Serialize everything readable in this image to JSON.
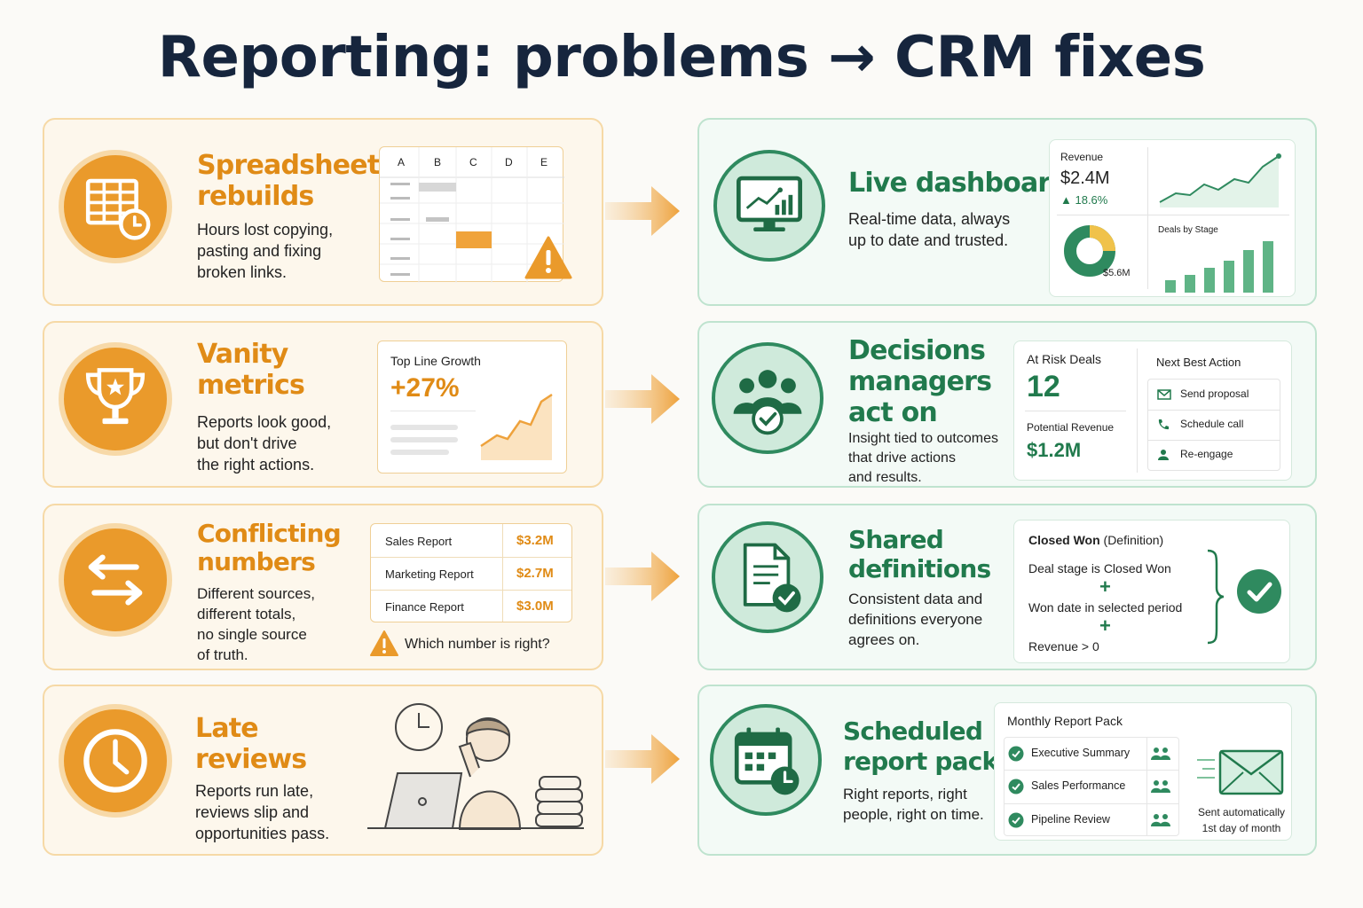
{
  "title": "Reporting: problems → CRM fixes",
  "colors": {
    "problem_accent": "#e08b16",
    "fix_accent": "#217a4d"
  },
  "problems": [
    {
      "icon": "spreadsheet-clock-icon",
      "heading_line1": "Spreadsheet",
      "heading_line2": "rebuilds",
      "body": [
        "Hours lost copying,",
        "pasting and fixing",
        "broken links."
      ],
      "spreadsheet_columns": [
        "A",
        "B",
        "C",
        "D",
        "E"
      ]
    },
    {
      "icon": "trophy-icon",
      "heading_line1": "Vanity",
      "heading_line2": "metrics",
      "body": [
        "Reports look good,",
        "but don't drive",
        "the right actions."
      ],
      "card_label": "Top Line Growth",
      "card_value": "+27%"
    },
    {
      "icon": "swap-arrows-icon",
      "heading_line1": "Conflicting",
      "heading_line2": "numbers",
      "body": [
        "Different sources,",
        "different totals,",
        "no single source",
        "of truth."
      ],
      "reports": [
        {
          "name": "Sales Report",
          "value": "$3.2M"
        },
        {
          "name": "Marketing Report",
          "value": "$2.7M"
        },
        {
          "name": "Finance Report",
          "value": "$3.0M"
        }
      ],
      "warning": "Which number is right?"
    },
    {
      "icon": "clock-icon",
      "heading_line1": "Late",
      "heading_line2": "reviews",
      "body": [
        "Reports run late,",
        "reviews slip and",
        "opportunities pass."
      ]
    }
  ],
  "fixes": [
    {
      "icon": "monitor-chart-icon",
      "heading_line1": "Live dashboards",
      "body": [
        "Real-time data, always",
        "up to date and trusted."
      ],
      "revenue_label": "Revenue",
      "revenue_value": "$2.4M",
      "revenue_change": "▲ 18.6%",
      "donut_value": "$5.6M",
      "donut_fraction": 0.75,
      "stage_label": "Deals by Stage"
    },
    {
      "icon": "team-check-icon",
      "heading_line1": "Decisions",
      "heading_line2": "managers",
      "heading_line3": "act on",
      "body": [
        "Insight tied to outcomes",
        "that drive actions",
        "and results."
      ],
      "at_risk_label": "At Risk Deals",
      "at_risk_value": "12",
      "potential_label": "Potential Revenue",
      "potential_value": "$1.2M",
      "next_label": "Next Best Action",
      "actions": [
        "Send proposal",
        "Schedule call",
        "Re-engage"
      ]
    },
    {
      "icon": "document-check-icon",
      "heading_line1": "Shared",
      "heading_line2": "definitions",
      "body": [
        "Consistent data and",
        "definitions everyone",
        "agrees on."
      ],
      "def_title_bold": "Closed Won",
      "def_title_rest": " (Definition)",
      "rules": [
        "Deal stage is Closed Won",
        "Won date in selected period",
        "Revenue > 0"
      ],
      "plus": "+"
    },
    {
      "icon": "calendar-clock-icon",
      "heading_line1": "Scheduled",
      "heading_line2": "report packs",
      "body": [
        "Right reports, right",
        "people, right on time."
      ],
      "pack_title": "Monthly Report Pack",
      "reports": [
        "Executive Summary",
        "Sales Performance",
        "Pipeline Review"
      ],
      "sent_line1": "Sent automatically",
      "sent_line2": "1st day of month"
    }
  ]
}
